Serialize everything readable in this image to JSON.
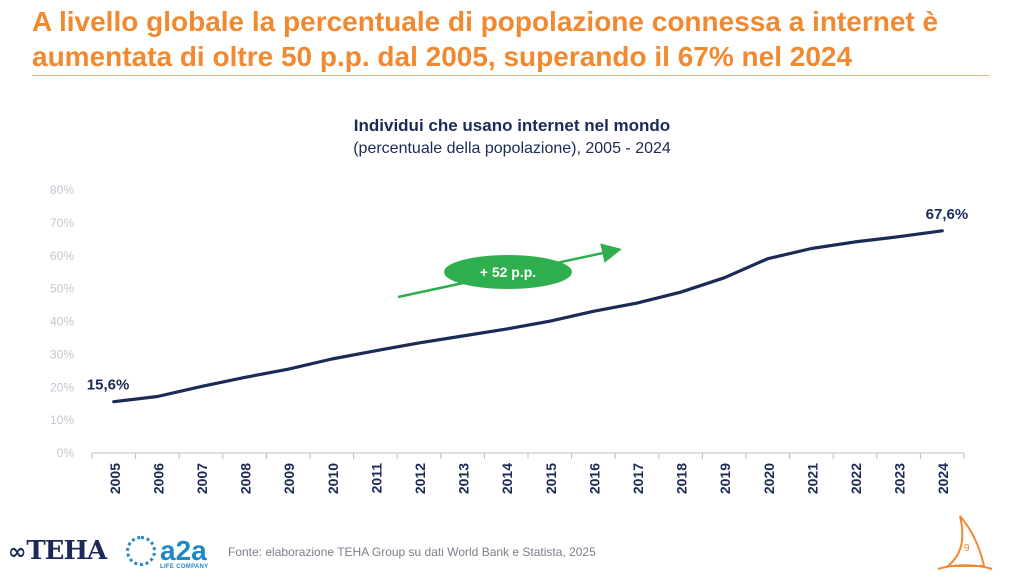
{
  "headline": "A livello globale la percentuale di popolazione connessa a internet è aumentata di oltre 50 p.p. dal 2005, superando il 67% nel 2024",
  "chart_data": {
    "type": "line",
    "title": "Individui che usano internet nel mondo",
    "subtitle": "(percentuale della popolazione), 2005 - 2024",
    "x": [
      "2005",
      "2006",
      "2007",
      "2008",
      "2009",
      "2010",
      "2011",
      "2012",
      "2013",
      "2014",
      "2015",
      "2016",
      "2017",
      "2018",
      "2019",
      "2020",
      "2021",
      "2022",
      "2023",
      "2024"
    ],
    "series": [
      {
        "values": [
          15.6,
          17.2,
          20.2,
          23.0,
          25.5,
          28.6,
          31.1,
          33.5,
          35.6,
          37.7,
          40.1,
          43.1,
          45.6,
          48.9,
          53.3,
          59.1,
          62.2,
          64.2,
          65.8,
          67.6
        ]
      }
    ],
    "ylim": [
      0,
      80
    ],
    "y_ticks": [
      "0%",
      "10%",
      "20%",
      "30%",
      "40%",
      "50%",
      "60%",
      "70%",
      "80%"
    ],
    "grid": false,
    "start_label": "15,6%",
    "end_label": "67,6%",
    "annotation": "+ 52 p.p.",
    "line_color": "#1b2a56",
    "annotation_color": "#2fae4e"
  },
  "footer": {
    "source": "Fonte: elaborazione TEHA Group su dati World Bank e Statista, 2025",
    "logo_teha": "TEHA",
    "logo_a2a": "a2a",
    "logo_a2a_sub": "LIFE COMPANY",
    "page_number": "9"
  },
  "colors": {
    "accent": "#f0892f",
    "navy": "#1b2a56",
    "a2a_blue": "#1e88c7"
  }
}
